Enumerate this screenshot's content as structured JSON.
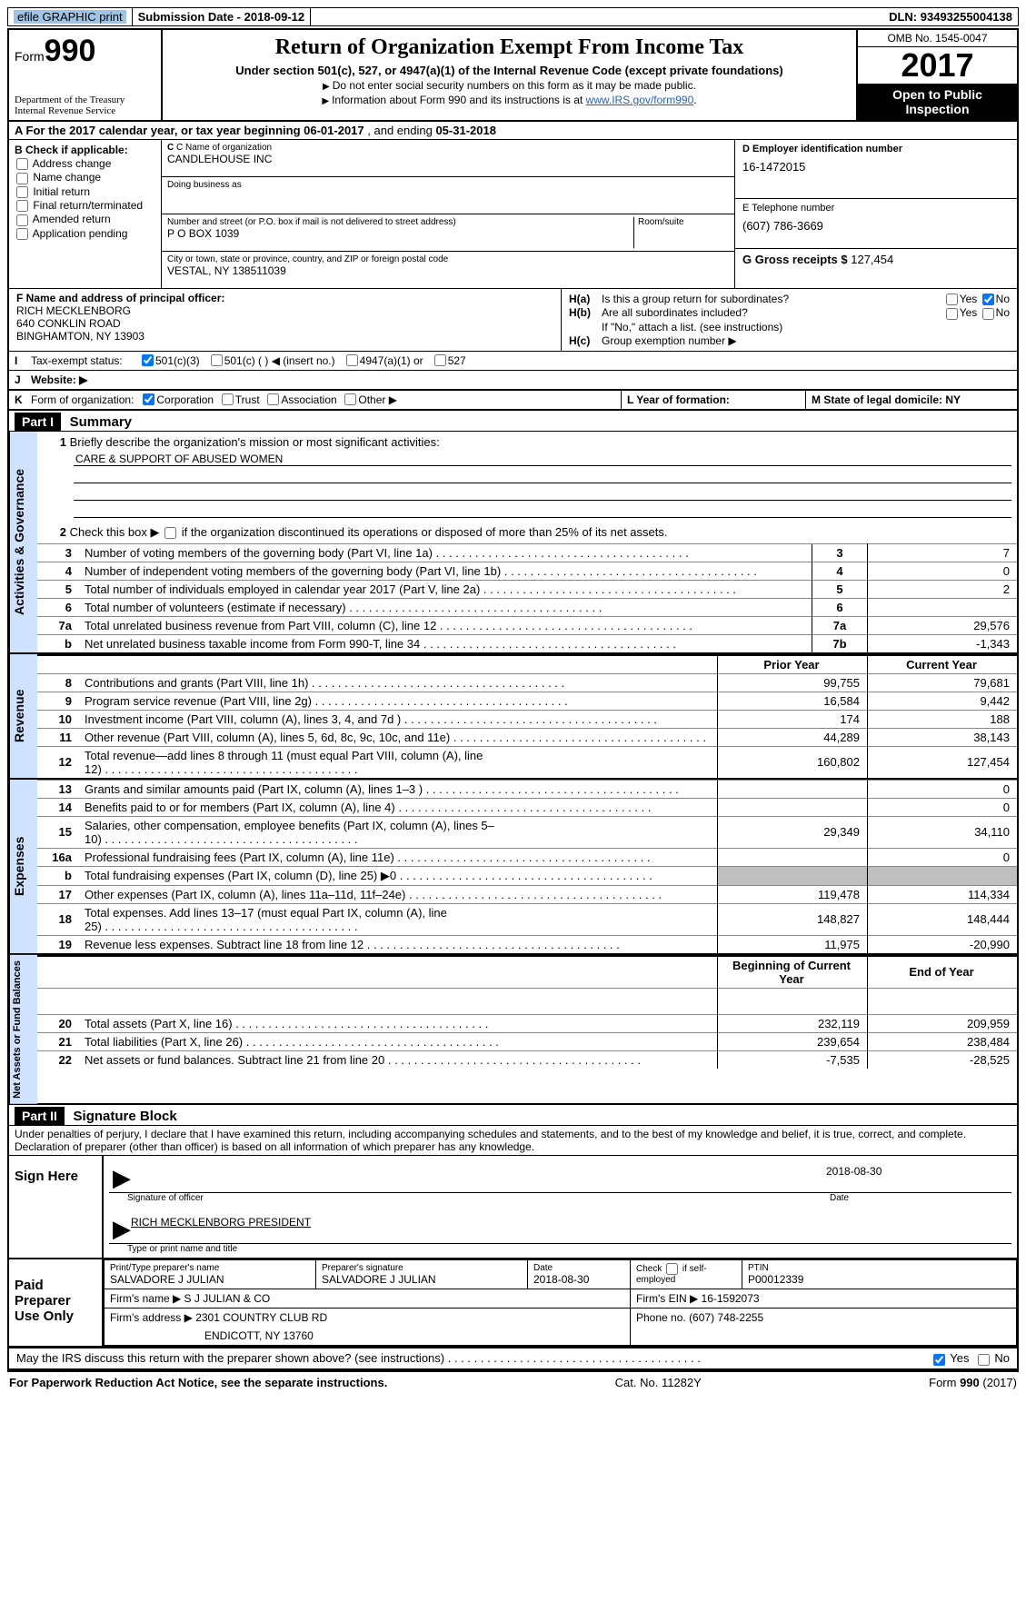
{
  "topbar": {
    "efile": "efile GRAPHIC print",
    "submission_label": "Submission Date - ",
    "submission_date": "2018-09-12",
    "dln_label": "DLN: ",
    "dln": "93493255004138"
  },
  "header": {
    "form_word": "Form",
    "form_no": "990",
    "dept1": "Department of the Treasury",
    "dept2": "Internal Revenue Service",
    "title": "Return of Organization Exempt From Income Tax",
    "subtitle": "Under section 501(c), 527, or 4947(a)(1) of the Internal Revenue Code (except private foundations)",
    "note1": "Do not enter social security numbers on this form as it may be made public.",
    "note2_pre": "Information about Form 990 and its instructions is at ",
    "note2_link": "www.IRS.gov/form990",
    "omb": "OMB No. 1545-0047",
    "year": "2017",
    "open1": "Open to Public",
    "open2": "Inspection"
  },
  "A": {
    "label": "A  For the 2017 calendar year, or tax year beginning ",
    "begin": "06-01-2017",
    "mid": "   , and ending ",
    "end": "05-31-2018"
  },
  "B": {
    "label": "B Check if applicable:",
    "opts": [
      "Address change",
      "Name change",
      "Initial return",
      "Final return/terminated",
      "Amended return",
      "Application pending"
    ]
  },
  "C": {
    "name_lbl": "C Name of organization",
    "name": "CANDLEHOUSE INC",
    "dba_lbl": "Doing business as",
    "street_lbl": "Number and street (or P.O. box if mail is not delivered to street address)",
    "room_lbl": "Room/suite",
    "street": "P O BOX 1039",
    "city_lbl": "City or town, state or province, country, and ZIP or foreign postal code",
    "city": "VESTAL, NY  138511039"
  },
  "D": {
    "ein_lbl": "D Employer identification number",
    "ein": "16-1472015",
    "tel_lbl": "E Telephone number",
    "tel": "(607) 786-3669",
    "gross_lbl": "G Gross receipts $ ",
    "gross": "127,454"
  },
  "F": {
    "lbl": "F  Name and address of principal officer:",
    "l1": "RICH MECKLENBORG",
    "l2": "640 CONKLIN ROAD",
    "l3": "BINGHAMTON, NY  13903"
  },
  "H": {
    "a_lbl": "H(a)",
    "a_txt": "Is this a group return for subordinates?",
    "b_lbl": "H(b)",
    "b_txt": "Are all subordinates included?",
    "b_note": "If \"No,\" attach a list. (see instructions)",
    "c_lbl": "H(c)",
    "c_txt": "Group exemption number ▶",
    "yes": "Yes",
    "no": "No"
  },
  "I": {
    "k": "I",
    "lbl": "Tax-exempt status:",
    "o1": "501(c)(3)",
    "o2": "501(c) (   ) ◀ (insert no.)",
    "o3": "4947(a)(1) or",
    "o4": "527"
  },
  "J": {
    "k": "J",
    "lbl": "Website: ▶"
  },
  "K": {
    "k": "K",
    "lbl": "Form of organization:",
    "o1": "Corporation",
    "o2": "Trust",
    "o3": "Association",
    "o4": "Other ▶",
    "L": "L Year of formation:",
    "M": "M State of legal domicile: NY"
  },
  "part1": {
    "hdr": "Part I",
    "title": "Summary",
    "q1": "Briefly describe the organization's mission or most significant activities:",
    "mission": "CARE & SUPPORT OF ABUSED WOMEN",
    "q2": "Check this box ▶          if the organization discontinued its operations or disposed of more than 25% of its net assets.",
    "lines_gov": [
      {
        "n": "3",
        "t": "Number of voting members of the governing body (Part VI, line 1a)",
        "b": "3",
        "v": "7"
      },
      {
        "n": "4",
        "t": "Number of independent voting members of the governing body (Part VI, line 1b)",
        "b": "4",
        "v": "0"
      },
      {
        "n": "5",
        "t": "Total number of individuals employed in calendar year 2017 (Part V, line 2a)",
        "b": "5",
        "v": "2"
      },
      {
        "n": "6",
        "t": "Total number of volunteers (estimate if necessary)",
        "b": "6",
        "v": ""
      },
      {
        "n": "7a",
        "t": "Total unrelated business revenue from Part VIII, column (C), line 12",
        "b": "7a",
        "v": "29,576"
      },
      {
        "n": "b",
        "t": "Net unrelated business taxable income from Form 990-T, line 34",
        "b": "7b",
        "v": "-1,343"
      }
    ],
    "col_prior": "Prior Year",
    "col_curr": "Current Year",
    "lines_rev": [
      {
        "n": "8",
        "t": "Contributions and grants (Part VIII, line 1h)",
        "p": "99,755",
        "c": "79,681"
      },
      {
        "n": "9",
        "t": "Program service revenue (Part VIII, line 2g)",
        "p": "16,584",
        "c": "9,442"
      },
      {
        "n": "10",
        "t": "Investment income (Part VIII, column (A), lines 3, 4, and 7d )",
        "p": "174",
        "c": "188"
      },
      {
        "n": "11",
        "t": "Other revenue (Part VIII, column (A), lines 5, 6d, 8c, 9c, 10c, and 11e)",
        "p": "44,289",
        "c": "38,143"
      },
      {
        "n": "12",
        "t": "Total revenue—add lines 8 through 11 (must equal Part VIII, column (A), line 12)",
        "p": "160,802",
        "c": "127,454"
      }
    ],
    "lines_exp": [
      {
        "n": "13",
        "t": "Grants and similar amounts paid (Part IX, column (A), lines 1–3 )",
        "p": "",
        "c": "0"
      },
      {
        "n": "14",
        "t": "Benefits paid to or for members (Part IX, column (A), line 4)",
        "p": "",
        "c": "0"
      },
      {
        "n": "15",
        "t": "Salaries, other compensation, employee benefits (Part IX, column (A), lines 5–10)",
        "p": "29,349",
        "c": "34,110"
      },
      {
        "n": "16a",
        "t": "Professional fundraising fees (Part IX, column (A), line 11e)",
        "p": "",
        "c": "0"
      },
      {
        "n": "b",
        "t": "Total fundraising expenses (Part IX, column (D), line 25) ▶0",
        "p": "__G__",
        "c": "__G__"
      },
      {
        "n": "17",
        "t": "Other expenses (Part IX, column (A), lines 11a–11d, 11f–24e)",
        "p": "119,478",
        "c": "114,334"
      },
      {
        "n": "18",
        "t": "Total expenses. Add lines 13–17 (must equal Part IX, column (A), line 25)",
        "p": "148,827",
        "c": "148,444"
      },
      {
        "n": "19",
        "t": "Revenue less expenses. Subtract line 18 from line 12",
        "p": "11,975",
        "c": "-20,990"
      }
    ],
    "col_beg": "Beginning of Current Year",
    "col_end": "End of Year",
    "lines_net": [
      {
        "n": "20",
        "t": "Total assets (Part X, line 16)",
        "p": "232,119",
        "c": "209,959"
      },
      {
        "n": "21",
        "t": "Total liabilities (Part X, line 26)",
        "p": "239,654",
        "c": "238,484"
      },
      {
        "n": "22",
        "t": "Net assets or fund balances. Subtract line 21 from line 20",
        "p": "-7,535",
        "c": "-28,525"
      }
    ],
    "vlabels": {
      "gov": "Activities & Governance",
      "rev": "Revenue",
      "exp": "Expenses",
      "net": "Net Assets or Fund Balances"
    }
  },
  "part2": {
    "hdr": "Part II",
    "title": "Signature Block",
    "decl": "Under penalties of perjury, I declare that I have examined this return, including accompanying schedules and statements, and to the best of my knowledge and belief, it is true, correct, and complete. Declaration of preparer (other than officer) is based on all information of which preparer has any knowledge.",
    "sign_here": "Sign Here",
    "sig_officer_lbl": "Signature of officer",
    "sig_date": "2018-08-30",
    "date_lbl": "Date",
    "officer_name": "RICH MECKLENBORG PRESIDENT",
    "type_lbl": "Type or print name and title",
    "paid": "Paid Preparer Use Only",
    "prep": {
      "name_lbl": "Print/Type preparer's name",
      "name": "SALVADORE J JULIAN",
      "sig_lbl": "Preparer's signature",
      "sig": "SALVADORE J JULIAN",
      "pdate_lbl": "Date",
      "pdate": "2018-08-30",
      "self_lbl": "Check         if self-employed",
      "ptin_lbl": "PTIN",
      "ptin": "P00012339",
      "firm_name_lbl": "Firm's name      ▶ ",
      "firm_name": "S J JULIAN & CO",
      "firm_ein_lbl": "Firm's EIN ▶ ",
      "firm_ein": "16-1592073",
      "firm_addr_lbl": "Firm's address ▶ ",
      "firm_addr1": "2301 COUNTRY CLUB RD",
      "firm_addr2": "ENDICOTT, NY  13760",
      "phone_lbl": "Phone no. ",
      "phone": "(607) 748-2255"
    },
    "discuss": "May the IRS discuss this return with the preparer shown above? (see instructions)",
    "yes": "Yes",
    "no": "No"
  },
  "footer": {
    "left": "For Paperwork Reduction Act Notice, see the separate instructions.",
    "mid": "Cat. No. 11282Y",
    "right_pre": "Form ",
    "right_b": "990",
    "right_post": " (2017)"
  }
}
